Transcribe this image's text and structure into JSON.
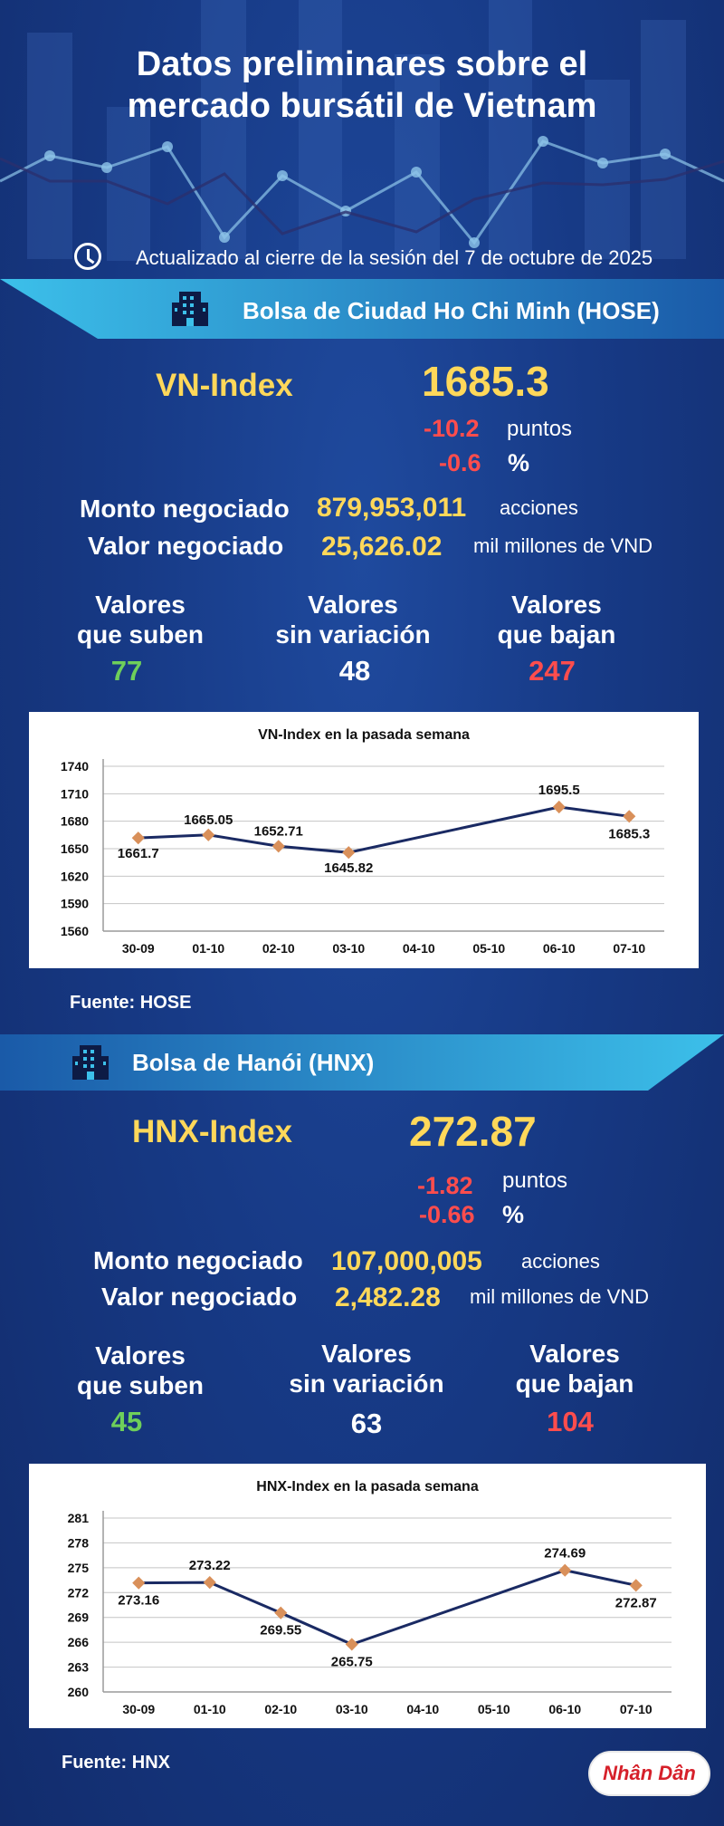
{
  "title_line1": "Datos preliminares sobre el",
  "title_line2": "mercado bursátil de Vietnam",
  "updated": "Actualizado al cierre de la sesión del 7 de octubre de 2025",
  "colors": {
    "up": "#6ecf5a",
    "down": "#ff4d4d",
    "highlight": "#ffd85a",
    "line": "#1a2a63",
    "marker": "#d9905a"
  },
  "hose": {
    "band_label": "Bolsa de Ciudad Ho Chi Minh (HOSE)",
    "index_name": "VN-Index",
    "index_value": "1685.3",
    "change_points": "-10.2",
    "points_label": "puntos",
    "change_pct": "-0.6",
    "pct_label": "%",
    "volume_label": "Monto negociado",
    "volume_value": "879,953,011",
    "volume_unit": "acciones",
    "value_label": "Valor negociado",
    "value_value": "25,626.02",
    "value_unit": "mil millones de VND",
    "up_label_1": "Valores",
    "up_label_2": "que suben",
    "up_count": "77",
    "flat_label_1": "Valores",
    "flat_label_2": "sin variación",
    "flat_count": "48",
    "down_label_1": "Valores",
    "down_label_2": "que bajan",
    "down_count": "247",
    "source": "Fuente: HOSE"
  },
  "hnx": {
    "band_label": "Bolsa de Hanói (HNX)",
    "index_name": "HNX-Index",
    "index_value": "272.87",
    "change_points": "-1.82",
    "points_label": "puntos",
    "change_pct": "-0.66",
    "pct_label": "%",
    "volume_label": "Monto negociado",
    "volume_value": "107,000,005",
    "volume_unit": "acciones",
    "value_label": "Valor negociado",
    "value_value": "2,482.28",
    "value_unit": "mil millones de VND",
    "up_label_1": "Valores",
    "up_label_2": "que suben",
    "up_count": "45",
    "flat_label_1": "Valores",
    "flat_label_2": "sin variación",
    "flat_count": "63",
    "down_label_1": "Valores",
    "down_label_2": "que bajan",
    "down_count": "104",
    "source": "Fuente:  HNX"
  },
  "logo_text": "Nhân Dân",
  "chart_data": [
    {
      "type": "line",
      "title": "VN-Index en la pasada semana",
      "categories": [
        "30-09",
        "01-10",
        "02-10",
        "03-10",
        "04-10",
        "05-10",
        "06-10",
        "07-10"
      ],
      "points": [
        {
          "x": "30-09",
          "y": 1661.7,
          "label": "1661.7"
        },
        {
          "x": "01-10",
          "y": 1665.05,
          "label": "1665.05"
        },
        {
          "x": "02-10",
          "y": 1652.71,
          "label": "1652.71"
        },
        {
          "x": "03-10",
          "y": 1645.82,
          "label": "1645.82"
        },
        {
          "x": "06-10",
          "y": 1695.5,
          "label": "1695.5"
        },
        {
          "x": "07-10",
          "y": 1685.3,
          "label": "1685.3"
        }
      ],
      "yticks": [
        "1740",
        "1710",
        "1680",
        "1650",
        "1620",
        "1590",
        "1560"
      ],
      "ylim": [
        1560,
        1740
      ],
      "grid": true
    },
    {
      "type": "line",
      "title": "HNX-Index en la pasada semana",
      "categories": [
        "30-09",
        "01-10",
        "02-10",
        "03-10",
        "04-10",
        "05-10",
        "06-10",
        "07-10"
      ],
      "points": [
        {
          "x": "30-09",
          "y": 273.16,
          "label": "273.16"
        },
        {
          "x": "01-10",
          "y": 273.22,
          "label": "273.22"
        },
        {
          "x": "02-10",
          "y": 269.55,
          "label": "269.55"
        },
        {
          "x": "03-10",
          "y": 265.75,
          "label": "265.75"
        },
        {
          "x": "06-10",
          "y": 274.69,
          "label": "274.69"
        },
        {
          "x": "07-10",
          "y": 272.87,
          "label": "272.87"
        }
      ],
      "yticks": [
        "281",
        "278",
        "275",
        "272",
        "269",
        "266",
        "263",
        "260"
      ],
      "ylim": [
        260,
        281
      ],
      "grid": true
    }
  ]
}
